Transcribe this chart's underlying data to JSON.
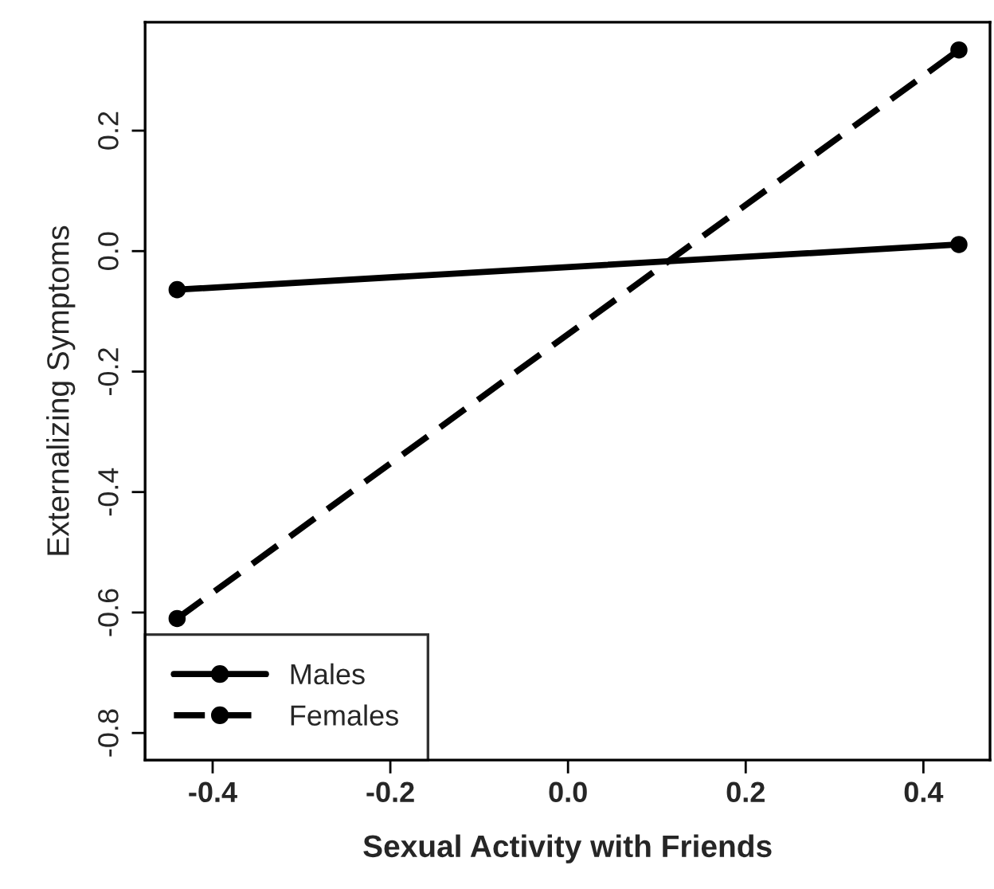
{
  "chart_data": {
    "type": "line",
    "xlabel": "Sexual Activity with Friends",
    "ylabel": "Externalizing Symptoms",
    "x": [
      -0.44,
      0.44
    ],
    "series": [
      {
        "name": "Males",
        "color": "#000000",
        "values": [
          -0.064,
          0.011
        ],
        "line_style": "solid"
      },
      {
        "name": "Females",
        "color": "#000000",
        "values": [
          -0.61,
          0.334
        ],
        "line_style": "dashed"
      }
    ],
    "xlim": [
      -0.476,
      0.475
    ],
    "xticks": [
      {
        "value": -0.4,
        "label": "-0.4"
      },
      {
        "value": -0.2,
        "label": "-0.2"
      },
      {
        "value": 0.0,
        "label": "0.0"
      },
      {
        "value": 0.2,
        "label": "0.2"
      },
      {
        "value": 0.4,
        "label": "0.4"
      }
    ],
    "ylim": [
      -0.845,
      0.38
    ],
    "yticks": [
      {
        "value": -0.8,
        "label": "-0.8"
      },
      {
        "value": -0.6,
        "label": "-0.6"
      },
      {
        "value": -0.4,
        "label": "-0.4"
      },
      {
        "value": -0.2,
        "label": "-0.2"
      },
      {
        "value": 0.0,
        "label": "0.0"
      },
      {
        "value": 0.2,
        "label": "0.2"
      }
    ],
    "marker": "circle",
    "legend": "bottom left",
    "grid": false
  }
}
